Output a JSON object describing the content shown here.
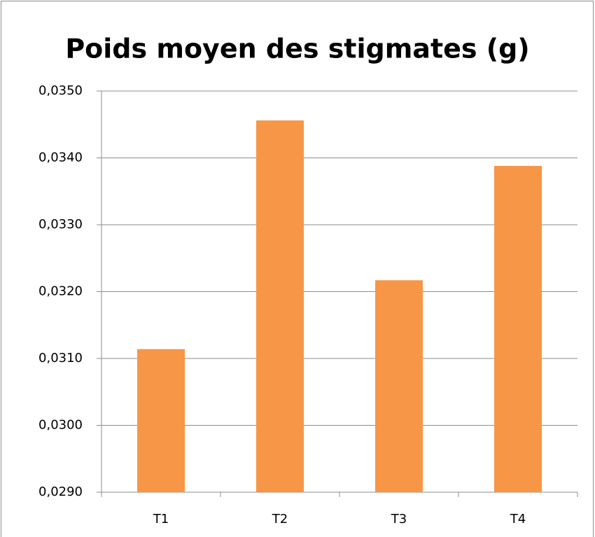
{
  "chart_data": {
    "type": "bar",
    "title": "Poids moyen des stigmates (g)",
    "categories": [
      "T1",
      "T2",
      "T3",
      "T4"
    ],
    "values": [
      0.03114,
      0.03456,
      0.03217,
      0.03388
    ],
    "color": "#f79646",
    "ylim": [
      0.029,
      0.035
    ],
    "yticks": [
      {
        "value": 0.029,
        "label": "0,0290"
      },
      {
        "value": 0.03,
        "label": "0,0300"
      },
      {
        "value": 0.031,
        "label": "0,0310"
      },
      {
        "value": 0.032,
        "label": "0,0320"
      },
      {
        "value": 0.033,
        "label": "0,0330"
      },
      {
        "value": 0.034,
        "label": "0,0340"
      },
      {
        "value": 0.035,
        "label": "0,0350"
      }
    ],
    "grid": true
  }
}
